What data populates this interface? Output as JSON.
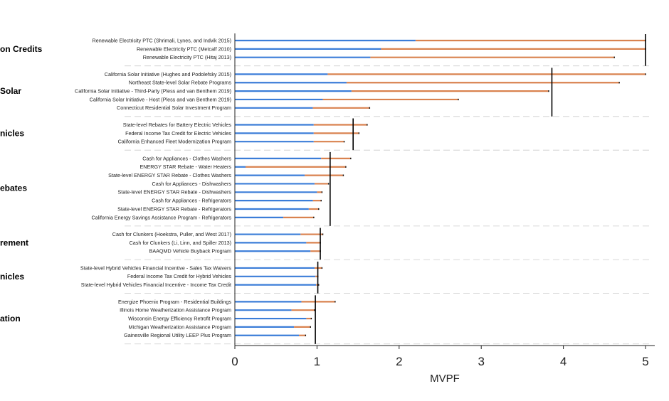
{
  "chart_data": {
    "type": "bar",
    "orientation": "horizontal",
    "xlabel": "MVPF",
    "xlim": [
      0,
      5
    ],
    "xticks": [
      0,
      1,
      2,
      3,
      4,
      5
    ],
    "grid": false,
    "colors": {
      "blue": "#3b7dd8",
      "orange": "#d9824f",
      "average": "#000000",
      "separator": "#cccccc"
    },
    "groups": [
      {
        "label": "on Credits",
        "average": 5.0,
        "rows": [
          {
            "label": "Renewable Electricity PTC (Shrimali, Lynes, and Indvik 2015)",
            "blue": 2.2,
            "total": 5.0
          },
          {
            "label": "Renewable Electricity PTC (Metcalf 2010)",
            "blue": 1.78,
            "total": 5.0
          },
          {
            "label": "Renewable Electricity PTC (Hitaj 2013)",
            "blue": 1.65,
            "total": 4.62
          }
        ]
      },
      {
        "label": "Solar",
        "average": 3.86,
        "rows": [
          {
            "label": "California Solar Initiative (Hughes and Podolefsky 2015)",
            "blue": 1.13,
            "total": 5.0
          },
          {
            "label": "Northeast State-level Solar Rebate Programs",
            "blue": 1.36,
            "total": 4.68
          },
          {
            "label": "California Solar Initiative - Third-Party (Pless and van Benthem 2019)",
            "blue": 1.42,
            "total": 3.82
          },
          {
            "label": "California Solar Initiative - Host (Pless and van Benthem 2019)",
            "blue": 1.07,
            "total": 2.72
          },
          {
            "label": "Connecticut Residential Solar Investment Program",
            "blue": 0.95,
            "total": 1.64
          }
        ]
      },
      {
        "label": "nicles",
        "average": 1.44,
        "rows": [
          {
            "label": "State-level Rebates for Battery Electric Vehicles",
            "blue": 0.96,
            "total": 1.61
          },
          {
            "label": "Federal Income Tax Credit for Electric Vehicles",
            "blue": 0.96,
            "total": 1.51
          },
          {
            "label": "California Enhanced Fleet Modernization Program",
            "blue": 0.96,
            "total": 1.33
          }
        ]
      },
      {
        "label": "ebates",
        "average": 1.16,
        "rows": [
          {
            "label": "Cash for Appliances - Clothes Washers",
            "blue": 1.05,
            "total": 1.41
          },
          {
            "label": "ENERGY STAR Rebate - Water Heaters",
            "blue": 0.13,
            "total": 1.35
          },
          {
            "label": "State-level ENERGY STAR Rebate - Clothes Washers",
            "blue": 0.85,
            "total": 1.32
          },
          {
            "label": "Cash for Appliances - Dishwashers",
            "blue": 0.97,
            "total": 1.14
          },
          {
            "label": "State-level ENERGY STAR Rebate - Dishwashers",
            "blue": 1.0,
            "total": 1.06
          },
          {
            "label": "Cash for Appliances - Refrigerators",
            "blue": 0.95,
            "total": 1.05
          },
          {
            "label": "State-level ENERGY STAR Rebate - Refrigerators",
            "blue": 0.9,
            "total": 1.02
          },
          {
            "label": "California Energy Savings Assistance Program - Refrigerators",
            "blue": 0.59,
            "total": 0.96
          }
        ]
      },
      {
        "label": "rement",
        "average": 1.04,
        "rows": [
          {
            "label": "Cash for Clunkers (Hoekstra, Puller, and West 2017)",
            "blue": 0.8,
            "total": 1.07
          },
          {
            "label": "Cash for Clunkers (Li, Linn, and Spiller 2013)",
            "blue": 0.87,
            "total": 1.04
          },
          {
            "label": "BAAQMD Vehicle Buyback Program",
            "blue": 0.92,
            "total": 1.04
          }
        ]
      },
      {
        "label": "nicles",
        "average": 1.01,
        "rows": [
          {
            "label": "State-level Hybrid Vehicles Financial Incentive - Sales Tax Waivers",
            "blue": 0.97,
            "total": 1.06
          },
          {
            "label": "Federal Income Tax Credit for Hybrid Vehicles",
            "blue": 0.98,
            "total": 1.01
          },
          {
            "label": "State-level Hybrid Vehicles Financial Incentive - Income Tax Credit",
            "blue": 0.99,
            "total": 1.02
          }
        ]
      },
      {
        "label": "ation",
        "average": 0.98,
        "rows": [
          {
            "label": "Energize Phoenix Program - Residential Buildings",
            "blue": 0.81,
            "total": 1.22
          },
          {
            "label": "Illinois Home Weatherization Assistance Program",
            "blue": 0.69,
            "total": 0.97
          },
          {
            "label": "Wisconsin Energy Efficiency Retrofit Program",
            "blue": 0.87,
            "total": 0.93
          },
          {
            "label": "Michigan Weatherization Assistance Program",
            "blue": 0.72,
            "total": 0.92
          },
          {
            "label": "Gainesville Regional Utility LEEP Plus Program",
            "blue": 0.78,
            "total": 0.86
          }
        ]
      }
    ]
  }
}
